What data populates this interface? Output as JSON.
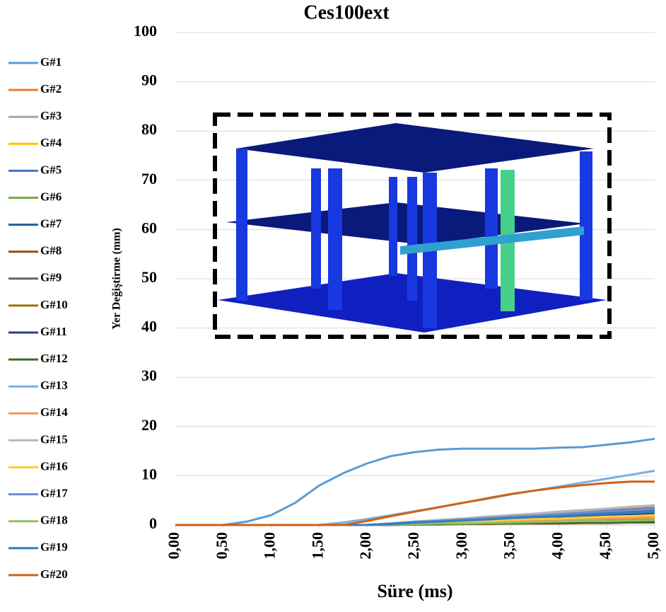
{
  "chart_data": {
    "type": "line",
    "title": "Ces100ext",
    "x_label": "Süre (ms)",
    "y_label": "Yer Değiştirme (mm)",
    "x": [
      0,
      0.25,
      0.5,
      0.75,
      1,
      1.25,
      1.5,
      1.75,
      2,
      2.25,
      2.5,
      2.75,
      3,
      3.25,
      3.5,
      3.75,
      4,
      4.25,
      4.5,
      4.75,
      5
    ],
    "xlim": [
      0,
      5
    ],
    "xticks": [
      {
        "value": 0,
        "label": "0,00"
      },
      {
        "value": 0.5,
        "label": "0,50"
      },
      {
        "value": 1,
        "label": "1,00"
      },
      {
        "value": 1.5,
        "label": "1,50"
      },
      {
        "value": 2,
        "label": "2,00"
      },
      {
        "value": 2.5,
        "label": "2,50"
      },
      {
        "value": 3,
        "label": "3,00"
      },
      {
        "value": 3.5,
        "label": "3,50"
      },
      {
        "value": 4,
        "label": "4,00"
      },
      {
        "value": 4.5,
        "label": "4,50"
      },
      {
        "value": 5,
        "label": "5,00"
      }
    ],
    "ylim": [
      0,
      100
    ],
    "yticks": [
      0,
      10,
      20,
      30,
      40,
      50,
      60,
      70,
      80,
      90,
      100
    ],
    "grid": true,
    "legend": "left",
    "series": [
      {
        "name": "G#1",
        "color": "#5b9bd5",
        "values": [
          0,
          0,
          0,
          0.7,
          2,
          4.5,
          8,
          10.5,
          12.5,
          14,
          14.8,
          15.3,
          15.5,
          15.5,
          15.5,
          15.5,
          15.7,
          15.8,
          16.3,
          16.8,
          17.5
        ]
      },
      {
        "name": "G#2",
        "color": "#ed7d31",
        "values": [
          0,
          0,
          0,
          0,
          0,
          0,
          0,
          0,
          0,
          0.3,
          0.6,
          0.9,
          1.2,
          1.5,
          1.8,
          2.0,
          2.3,
          2.6,
          2.9,
          3.2,
          3.5
        ]
      },
      {
        "name": "G#3",
        "color": "#a5a5a5",
        "values": [
          0,
          0,
          0,
          0,
          0,
          0,
          0,
          0,
          0,
          0.3,
          0.7,
          1.0,
          1.3,
          1.7,
          2.0,
          2.3,
          2.7,
          3.0,
          3.3,
          3.7,
          4.0
        ]
      },
      {
        "name": "G#4",
        "color": "#ffc000",
        "values": [
          0,
          0,
          0,
          0,
          0,
          0,
          0,
          0,
          0,
          0.2,
          0.3,
          0.5,
          0.6,
          0.8,
          0.9,
          1.1,
          1.2,
          1.4,
          1.5,
          1.7,
          1.8
        ]
      },
      {
        "name": "G#5",
        "color": "#4472c4",
        "values": [
          0,
          0,
          0,
          0,
          0,
          0,
          0,
          0,
          0,
          0.3,
          0.5,
          0.8,
          1.0,
          1.3,
          1.5,
          1.8,
          2.0,
          2.3,
          2.5,
          2.8,
          3.0
        ]
      },
      {
        "name": "G#6",
        "color": "#70ad47",
        "values": [
          0,
          0,
          0,
          0,
          0,
          0,
          0,
          0,
          0,
          0.1,
          0.1,
          0.2,
          0.3,
          0.3,
          0.4,
          0.5,
          0.5,
          0.6,
          0.7,
          0.7,
          0.8
        ]
      },
      {
        "name": "G#7",
        "color": "#255e91",
        "values": [
          0,
          0,
          0,
          0,
          0,
          0,
          0,
          0,
          0,
          0.2,
          0.4,
          0.6,
          0.8,
          1.0,
          1.3,
          1.5,
          1.7,
          1.9,
          2.1,
          2.3,
          2.5
        ]
      },
      {
        "name": "G#8",
        "color": "#9e480e",
        "values": [
          0,
          0,
          0,
          0,
          0,
          0,
          0,
          0,
          0,
          0,
          0.1,
          0.1,
          0.2,
          0.2,
          0.3,
          0.3,
          0.3,
          0.4,
          0.4,
          0.5,
          0.5
        ]
      },
      {
        "name": "G#9",
        "color": "#636363",
        "values": [
          0,
          0,
          0,
          0,
          0,
          0,
          0,
          0,
          0,
          0.3,
          0.6,
          1.0,
          1.3,
          1.6,
          1.9,
          2.2,
          2.5,
          2.9,
          3.2,
          3.5,
          3.8
        ]
      },
      {
        "name": "G#10",
        "color": "#997300",
        "values": [
          0,
          0,
          0,
          0,
          0,
          0,
          0,
          0,
          0,
          0.1,
          0.2,
          0.3,
          0.4,
          0.5,
          0.6,
          0.7,
          0.8,
          0.9,
          1.0,
          1.1,
          1.2
        ]
      },
      {
        "name": "G#11",
        "color": "#264478",
        "values": [
          0,
          0,
          0,
          0,
          0,
          0,
          0,
          0,
          0,
          0.2,
          0.4,
          0.6,
          0.7,
          0.9,
          1.1,
          1.3,
          1.5,
          1.7,
          1.8,
          2.0,
          2.2
        ]
      },
      {
        "name": "G#12",
        "color": "#43682b",
        "values": [
          0,
          0,
          0,
          0,
          0,
          0,
          0,
          0,
          0,
          0.1,
          0.1,
          0.2,
          0.2,
          0.3,
          0.3,
          0.4,
          0.4,
          0.5,
          0.5,
          0.6,
          0.6
        ]
      },
      {
        "name": "G#13",
        "color": "#7cafdd",
        "values": [
          0,
          0,
          0,
          0,
          0,
          0,
          0,
          0.5,
          1.2,
          2,
          2.8,
          3.6,
          4.5,
          5.3,
          6.2,
          7,
          7.8,
          8.6,
          9.4,
          10.2,
          11
        ]
      },
      {
        "name": "G#14",
        "color": "#f1975a",
        "values": [
          0,
          0,
          0,
          0,
          0,
          0,
          0,
          0,
          0,
          0.1,
          0.3,
          0.4,
          0.5,
          0.6,
          0.8,
          0.9,
          1.0,
          1.1,
          1.3,
          1.4,
          1.5
        ]
      },
      {
        "name": "G#15",
        "color": "#b7b7b7",
        "values": [
          0,
          0,
          0,
          0,
          0,
          0,
          0,
          0,
          0,
          0.3,
          0.7,
          1.0,
          1.3,
          1.6,
          2.0,
          2.3,
          2.6,
          2.9,
          3.3,
          3.6,
          3.9
        ]
      },
      {
        "name": "G#16",
        "color": "#ffcd33",
        "values": [
          0,
          0,
          0,
          0,
          0,
          0,
          0,
          0,
          0,
          0.2,
          0.3,
          0.5,
          0.7,
          0.8,
          1.0,
          1.2,
          1.3,
          1.5,
          1.7,
          1.8,
          2.0
        ]
      },
      {
        "name": "G#17",
        "color": "#698ed0",
        "values": [
          0,
          0,
          0,
          0,
          0,
          0,
          0,
          0,
          0,
          0.3,
          0.6,
          0.8,
          1.1,
          1.4,
          1.7,
          1.9,
          2.2,
          2.5,
          2.8,
          3.0,
          3.3
        ]
      },
      {
        "name": "G#18",
        "color": "#8cc168",
        "values": [
          0,
          0,
          0,
          0,
          0,
          0,
          0,
          0,
          0,
          0.1,
          0.2,
          0.3,
          0.3,
          0.4,
          0.5,
          0.6,
          0.7,
          0.8,
          0.8,
          0.9,
          1.0
        ]
      },
      {
        "name": "G#19",
        "color": "#327dc2",
        "values": [
          0,
          0,
          0,
          0,
          0,
          0,
          0,
          0,
          0,
          0.2,
          0.5,
          0.7,
          0.9,
          1.1,
          1.4,
          1.6,
          1.8,
          2.0,
          2.3,
          2.5,
          2.7
        ]
      },
      {
        "name": "G#20",
        "color": "#d26012",
        "values": [
          0,
          0,
          0,
          0,
          0,
          0,
          0,
          0,
          0.8,
          1.8,
          2.7,
          3.6,
          4.5,
          5.4,
          6.3,
          7,
          7.6,
          8.1,
          8.5,
          8.8,
          8.8
        ]
      }
    ]
  }
}
